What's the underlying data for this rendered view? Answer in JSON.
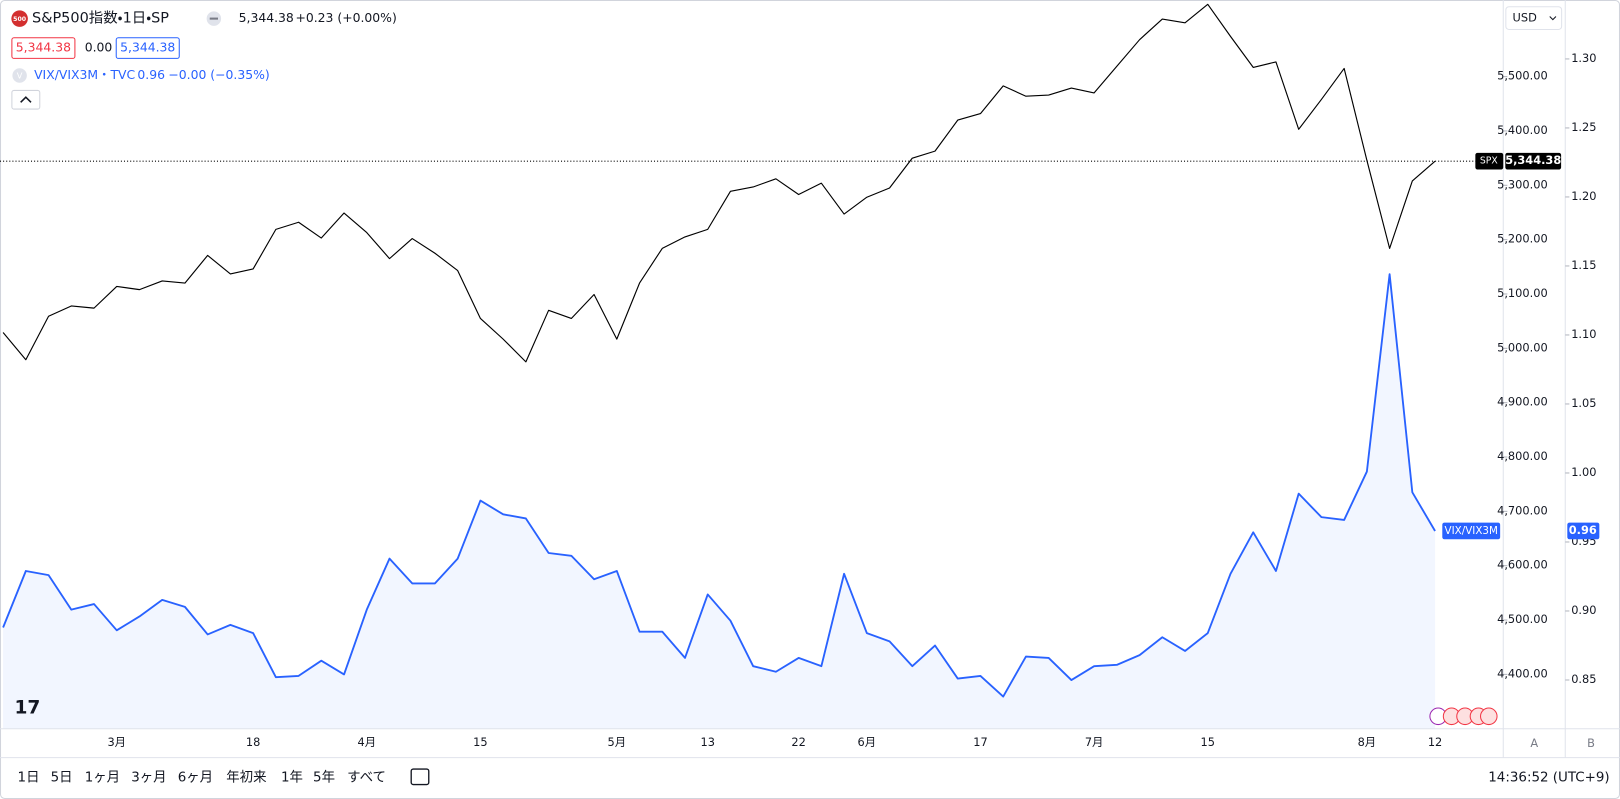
{
  "ui": {
    "logo": "500",
    "header": {
      "price": "5,344.38",
      "change": "+0.23 (+0.00%)",
      "bid": "5,344.38",
      "spread": "0.00",
      "ask": "5,344.38",
      "overlay_icon": "V",
      "overlay_name": "VIX/VIX3M・TVC",
      "overlay_price": "0.96",
      "overlay_change": "−0.00 (−0.35%)"
    },
    "currency": "USD",
    "scale_buttons": [
      "A",
      "B"
    ],
    "ranges": [
      "1日",
      "5日",
      "1ヶ月",
      "3ヶ月",
      "6ヶ月",
      "年初来",
      "1年",
      "5年",
      "すべて"
    ],
    "clock": "14:36:52 (UTC+9)"
  },
  "chart_data": {
    "type": "line",
    "title": "S&P500指数・1日・SP",
    "categories": [
      null,
      null,
      null,
      null,
      null,
      "3月",
      null,
      null,
      null,
      null,
      null,
      "18",
      null,
      null,
      null,
      null,
      "4月",
      null,
      null,
      null,
      null,
      "15",
      null,
      null,
      null,
      null,
      null,
      "5月",
      null,
      null,
      null,
      "13",
      null,
      null,
      null,
      "22",
      null,
      null,
      "6月",
      null,
      null,
      null,
      null,
      "17",
      null,
      null,
      null,
      null,
      "7月",
      null,
      null,
      null,
      null,
      "15",
      null,
      null,
      null,
      null,
      null,
      null,
      "8月",
      null,
      null,
      "12"
    ],
    "series": [
      {
        "name": "SPX",
        "color": "#000000",
        "last_label": "5,344.38",
        "values": [
          5029,
          4979,
          5059,
          5078,
          5074,
          5114,
          5108,
          5124,
          5120,
          5171,
          5137,
          5146,
          5219,
          5232,
          5203,
          5249,
          5213,
          5165,
          5202,
          5175,
          5143,
          5055,
          5017,
          4975,
          5070,
          5055,
          5099,
          5017,
          5120,
          5184,
          5205,
          5219,
          5289,
          5297,
          5312,
          5283,
          5304,
          5247,
          5278,
          5295,
          5350,
          5363,
          5420,
          5432,
          5483,
          5464,
          5466,
          5479,
          5470,
          5519,
          5568,
          5606,
          5599,
          5633,
          5574,
          5517,
          5527,
          5403,
          5458,
          5515,
          5346,
          5184,
          5308,
          5344.38
        ]
      },
      {
        "name": "VIX/VIX3M",
        "color": "#2962ff",
        "axis": "y2",
        "area": true,
        "last_label": "0.96",
        "values": [
          0.888,
          0.929,
          0.926,
          0.901,
          0.905,
          0.886,
          0.896,
          0.908,
          0.903,
          0.883,
          0.89,
          0.884,
          0.852,
          0.853,
          0.864,
          0.854,
          0.901,
          0.938,
          0.92,
          0.92,
          0.938,
          0.98,
          0.97,
          0.967,
          0.942,
          0.94,
          0.923,
          0.929,
          0.885,
          0.885,
          0.866,
          0.912,
          0.893,
          0.86,
          0.856,
          0.866,
          0.86,
          0.927,
          0.884,
          0.878,
          0.86,
          0.875,
          0.851,
          0.853,
          0.838,
          0.867,
          0.866,
          0.85,
          0.86,
          0.861,
          0.868,
          0.881,
          0.871,
          0.884,
          0.927,
          0.957,
          0.929,
          0.985,
          0.968,
          0.966,
          1.001,
          1.144,
          0.986,
          0.958
        ]
      }
    ],
    "ylim": [
      4300,
      5641
    ],
    "yticks": [
      {
        "value": 4400,
        "label": "4,400.00"
      },
      {
        "value": 4500,
        "label": "4,500.00"
      },
      {
        "value": 4600,
        "label": "4,600.00"
      },
      {
        "value": 4700,
        "label": "4,700.00"
      },
      {
        "value": 4800,
        "label": "4,800.00"
      },
      {
        "value": 4900,
        "label": "4,900.00"
      },
      {
        "value": 5000,
        "label": "5,000.00"
      },
      {
        "value": 5100,
        "label": "5,100.00"
      },
      {
        "value": 5200,
        "label": "5,200.00"
      },
      {
        "value": 5300,
        "label": "5,300.00"
      },
      {
        "value": 5400,
        "label": "5,400.00"
      },
      {
        "value": 5500,
        "label": "5,500.00"
      }
    ],
    "y2lim": [
      0.8147,
      1.3427
    ],
    "y2ticks": [
      0.85,
      {
        "value": 0.9,
        "label": "0.90"
      },
      0.95,
      {
        "value": 1.0,
        "label": "1.00"
      },
      1.05,
      {
        "value": 1.1,
        "label": "1.10"
      },
      1.15,
      {
        "value": 1.2,
        "label": "1.20"
      },
      1.25,
      {
        "value": 1.3,
        "label": "1.30"
      }
    ],
    "grid": false
  }
}
